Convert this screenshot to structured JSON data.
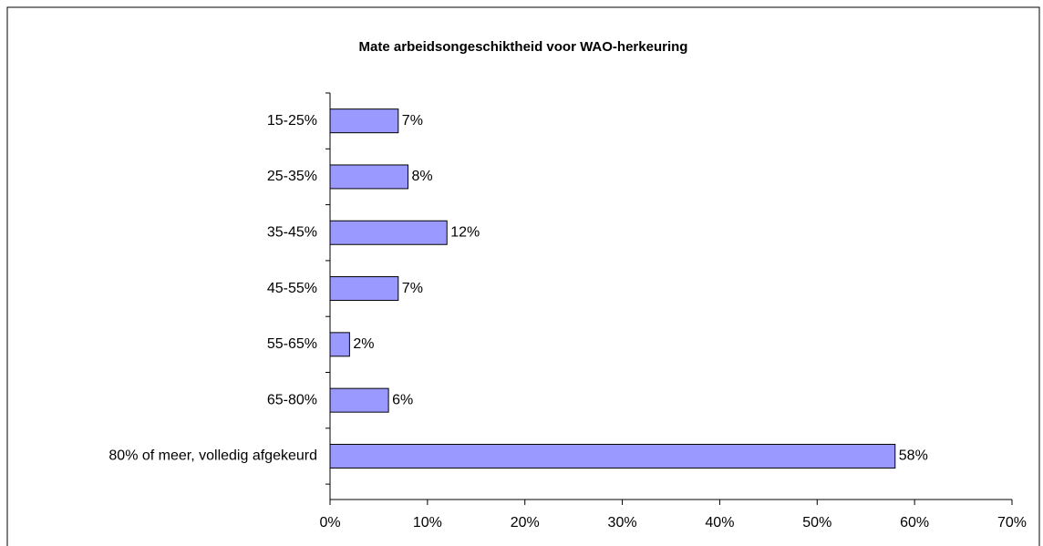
{
  "chart_data": {
    "type": "hbar",
    "title": "Mate arbeidsongeschiktheid voor WAO-herkeuring",
    "categories": [
      "15-25%",
      "25-35%",
      "35-45%",
      "45-55%",
      "55-65%",
      "65-80%",
      "80% of meer, volledig afgekeurd"
    ],
    "values": [
      7,
      8,
      12,
      7,
      2,
      6,
      58
    ],
    "value_labels": [
      "7%",
      "8%",
      "12%",
      "7%",
      "2%",
      "6%",
      "58%"
    ],
    "color": "#9999ff",
    "xlim": [
      0,
      70
    ],
    "xticks": [
      {
        "value": 0,
        "label": "0%"
      },
      {
        "value": 10,
        "label": "10%"
      },
      {
        "value": 20,
        "label": "20%"
      },
      {
        "value": 30,
        "label": "30%"
      },
      {
        "value": 40,
        "label": "40%"
      },
      {
        "value": 50,
        "label": "50%"
      },
      {
        "value": 60,
        "label": "60%"
      },
      {
        "value": 70,
        "label": "70%"
      }
    ]
  }
}
